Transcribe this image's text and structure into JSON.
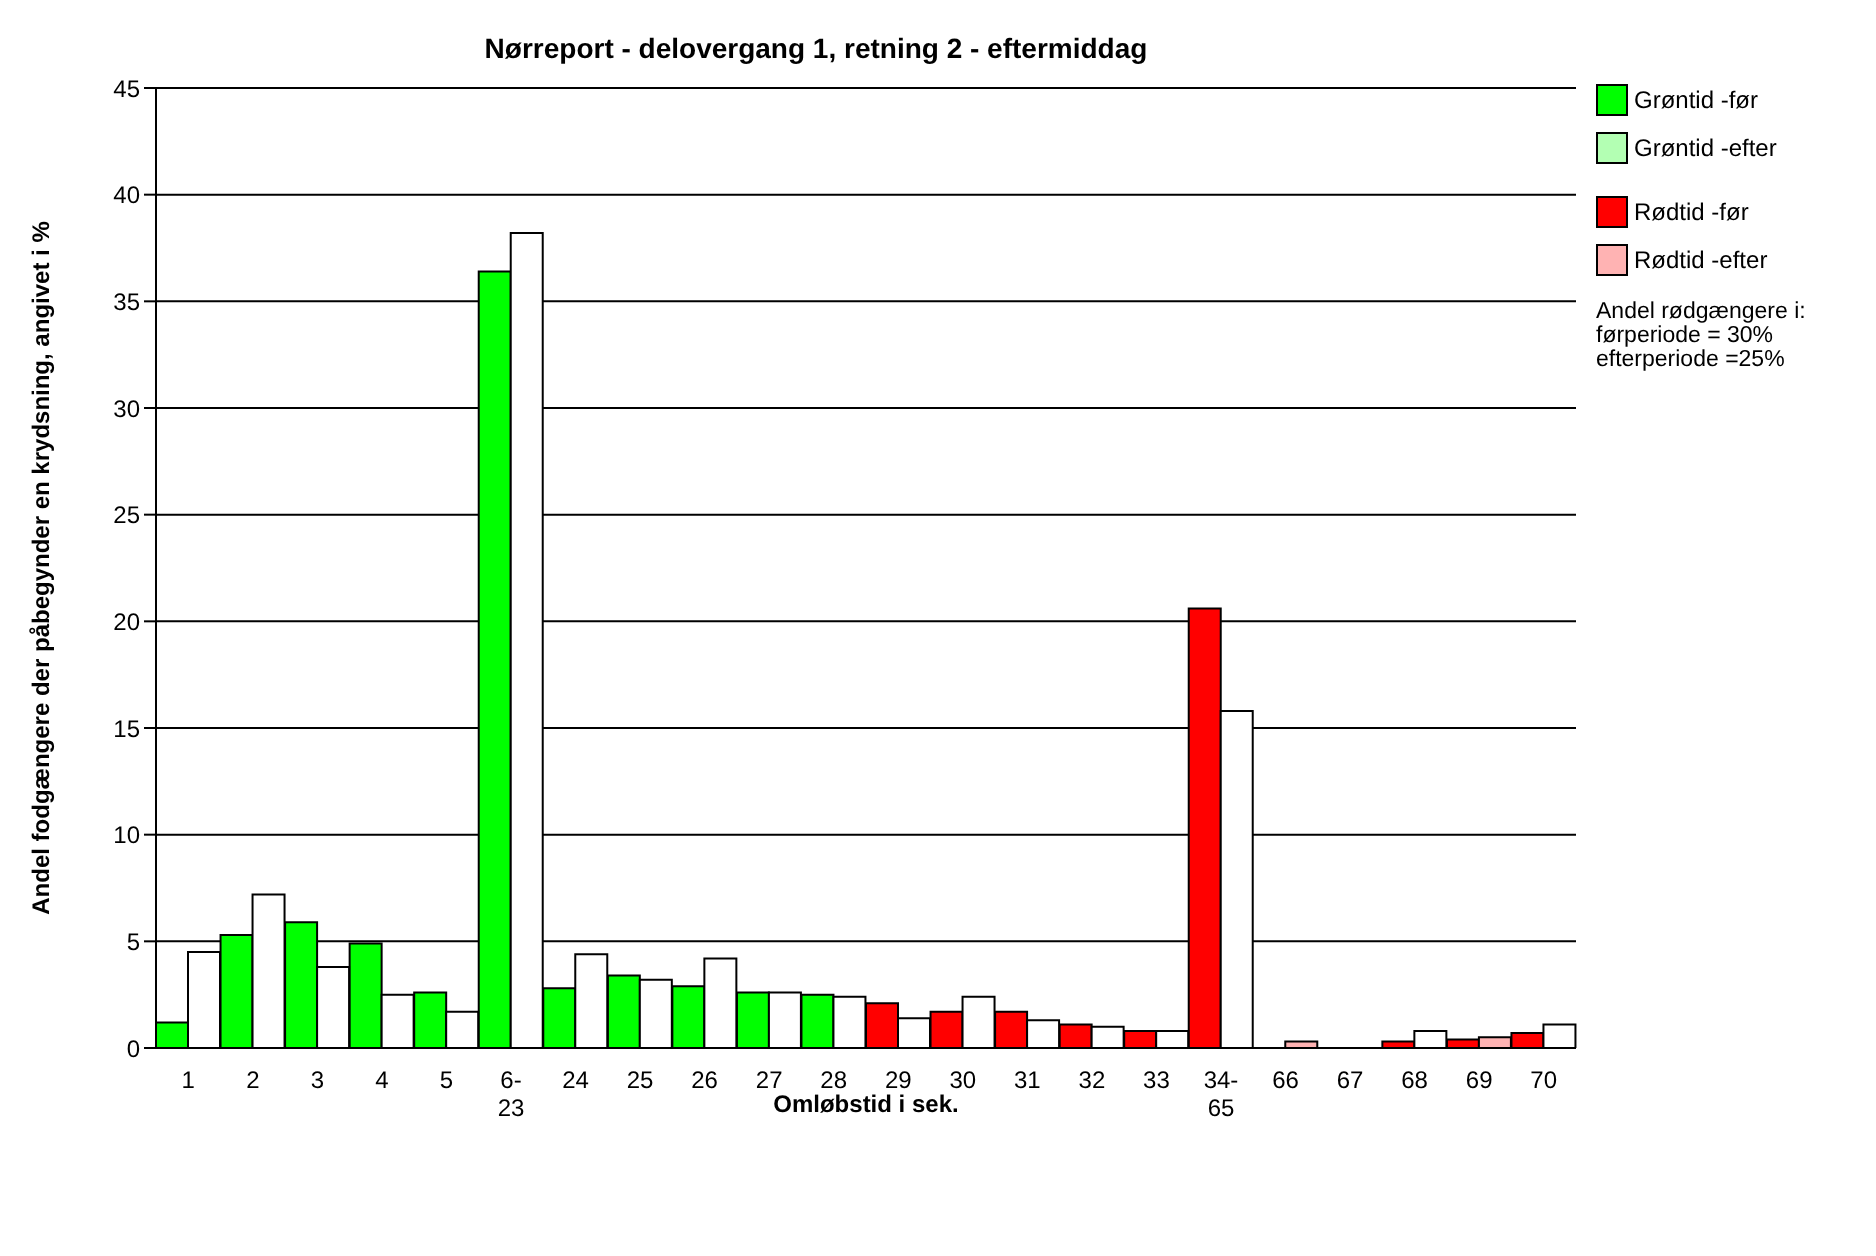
{
  "chart_data": {
    "type": "bar",
    "title": "Nørreport - delovergang 1, retning 2 - eftermiddag",
    "xlabel": "Omløbstid i sek.",
    "ylabel": "Andel fodgængere der påbegynder en krydsning, angivet i %",
    "categories": [
      "1",
      "2",
      "3",
      "4",
      "5",
      "6-23",
      "24",
      "25",
      "26",
      "27",
      "28",
      "29",
      "30",
      "31",
      "32",
      "33",
      "34-65",
      "66",
      "67",
      "68",
      "69",
      "70"
    ],
    "series": [
      {
        "name": "Grøntid -før",
        "color": "#00ff00",
        "values": [
          1.2,
          5.3,
          5.9,
          4.9,
          2.6,
          36.4,
          2.8,
          3.4,
          2.9,
          2.6,
          2.5,
          null,
          null,
          null,
          null,
          null,
          null,
          null,
          null,
          null,
          null,
          null
        ]
      },
      {
        "name": "Grøntid -efter",
        "color": "#b3ffb3",
        "colors": [
          "#ffffff",
          "#ffffff",
          "#ffffff",
          "#ffffff",
          "#ffffff",
          "#ffffff",
          "#ffffff",
          "#ffffff",
          "#ffffff",
          "#ffffff",
          "#ffffff",
          null,
          null,
          null,
          null,
          null,
          null,
          null,
          null,
          null,
          null,
          null
        ],
        "values": [
          4.5,
          7.2,
          3.8,
          2.5,
          1.7,
          38.2,
          4.4,
          3.2,
          4.2,
          2.6,
          2.4,
          null,
          null,
          null,
          null,
          null,
          null,
          null,
          null,
          null,
          null,
          null
        ]
      },
      {
        "name": "Rødtid -før",
        "color": "#ff0000",
        "values": [
          null,
          null,
          null,
          null,
          null,
          null,
          null,
          null,
          null,
          null,
          null,
          2.1,
          1.7,
          1.7,
          1.1,
          0.8,
          20.6,
          null,
          null,
          0.3,
          0.4,
          0.7
        ]
      },
      {
        "name": "Rødtid -efter",
        "color": "#ffb3b3",
        "colors": [
          null,
          null,
          null,
          null,
          null,
          null,
          null,
          null,
          null,
          null,
          null,
          "#ffffff",
          "#ffffff",
          "#ffffff",
          "#ffffff",
          "#ffffff",
          "#ffffff",
          "#ffb3b3",
          "#ffffff",
          "#ffffff",
          "#ffb3b3",
          "#ffffff"
        ],
        "values": [
          null,
          null,
          null,
          null,
          null,
          null,
          null,
          null,
          null,
          null,
          null,
          1.4,
          2.4,
          1.3,
          1.0,
          0.8,
          15.8,
          0.3,
          0,
          0.8,
          0.5,
          1.1
        ]
      }
    ],
    "ylim": [
      0,
      45
    ],
    "yticks": [
      0,
      5,
      10,
      15,
      20,
      25,
      30,
      35,
      40,
      45
    ],
    "grid": "y",
    "legend": "top right",
    "annotations": [
      "Andel rødgængere i:\nførperiode = 30%\nefterperiode =25%"
    ]
  }
}
